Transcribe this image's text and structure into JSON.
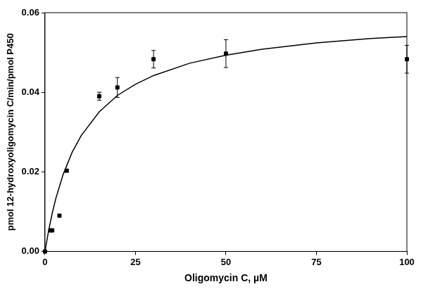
{
  "chart_data": {
    "type": "scatter",
    "x_label": "Oligomycin C, µM",
    "y_label": "pmol 12-hydroxyoligomycin C/min/pmol P450",
    "xlim": [
      0,
      100
    ],
    "xticks": [
      0,
      25,
      50,
      75,
      100
    ],
    "ylim": [
      0,
      0.06
    ],
    "yticks": [
      {
        "value": 0,
        "label": "0.00"
      },
      {
        "value": 0.02,
        "label": "0.02"
      },
      {
        "value": 0.04,
        "label": "0.04"
      },
      {
        "value": 0.06,
        "label": "0.06"
      }
    ],
    "grid": false,
    "series": [
      {
        "type": "scatter",
        "marker": "square",
        "color": "#000000",
        "x": [
          0,
          1.5,
          2,
          4,
          6,
          15,
          20,
          30,
          50,
          100
        ],
        "values": [
          0,
          0.0053,
          0.0053,
          0.009,
          0.0203,
          0.039,
          0.0412,
          0.0483,
          0.0497,
          0.0483
        ],
        "error": [
          null,
          null,
          null,
          null,
          null,
          0.001,
          0.0025,
          0.0022,
          0.0035,
          0.0035
        ]
      },
      {
        "type": "line",
        "line_style": "solid",
        "color": "#000000",
        "x": [
          0,
          1,
          2,
          3,
          5,
          7.5,
          10,
          15,
          20,
          25,
          30,
          40,
          50,
          60,
          75,
          90,
          100
        ],
        "values": [
          0,
          0.0052,
          0.0096,
          0.0133,
          0.0193,
          0.0249,
          0.0291,
          0.0351,
          0.0392,
          0.042,
          0.0442,
          0.0473,
          0.0493,
          0.0508,
          0.0524,
          0.0535,
          0.054
        ]
      }
    ]
  }
}
